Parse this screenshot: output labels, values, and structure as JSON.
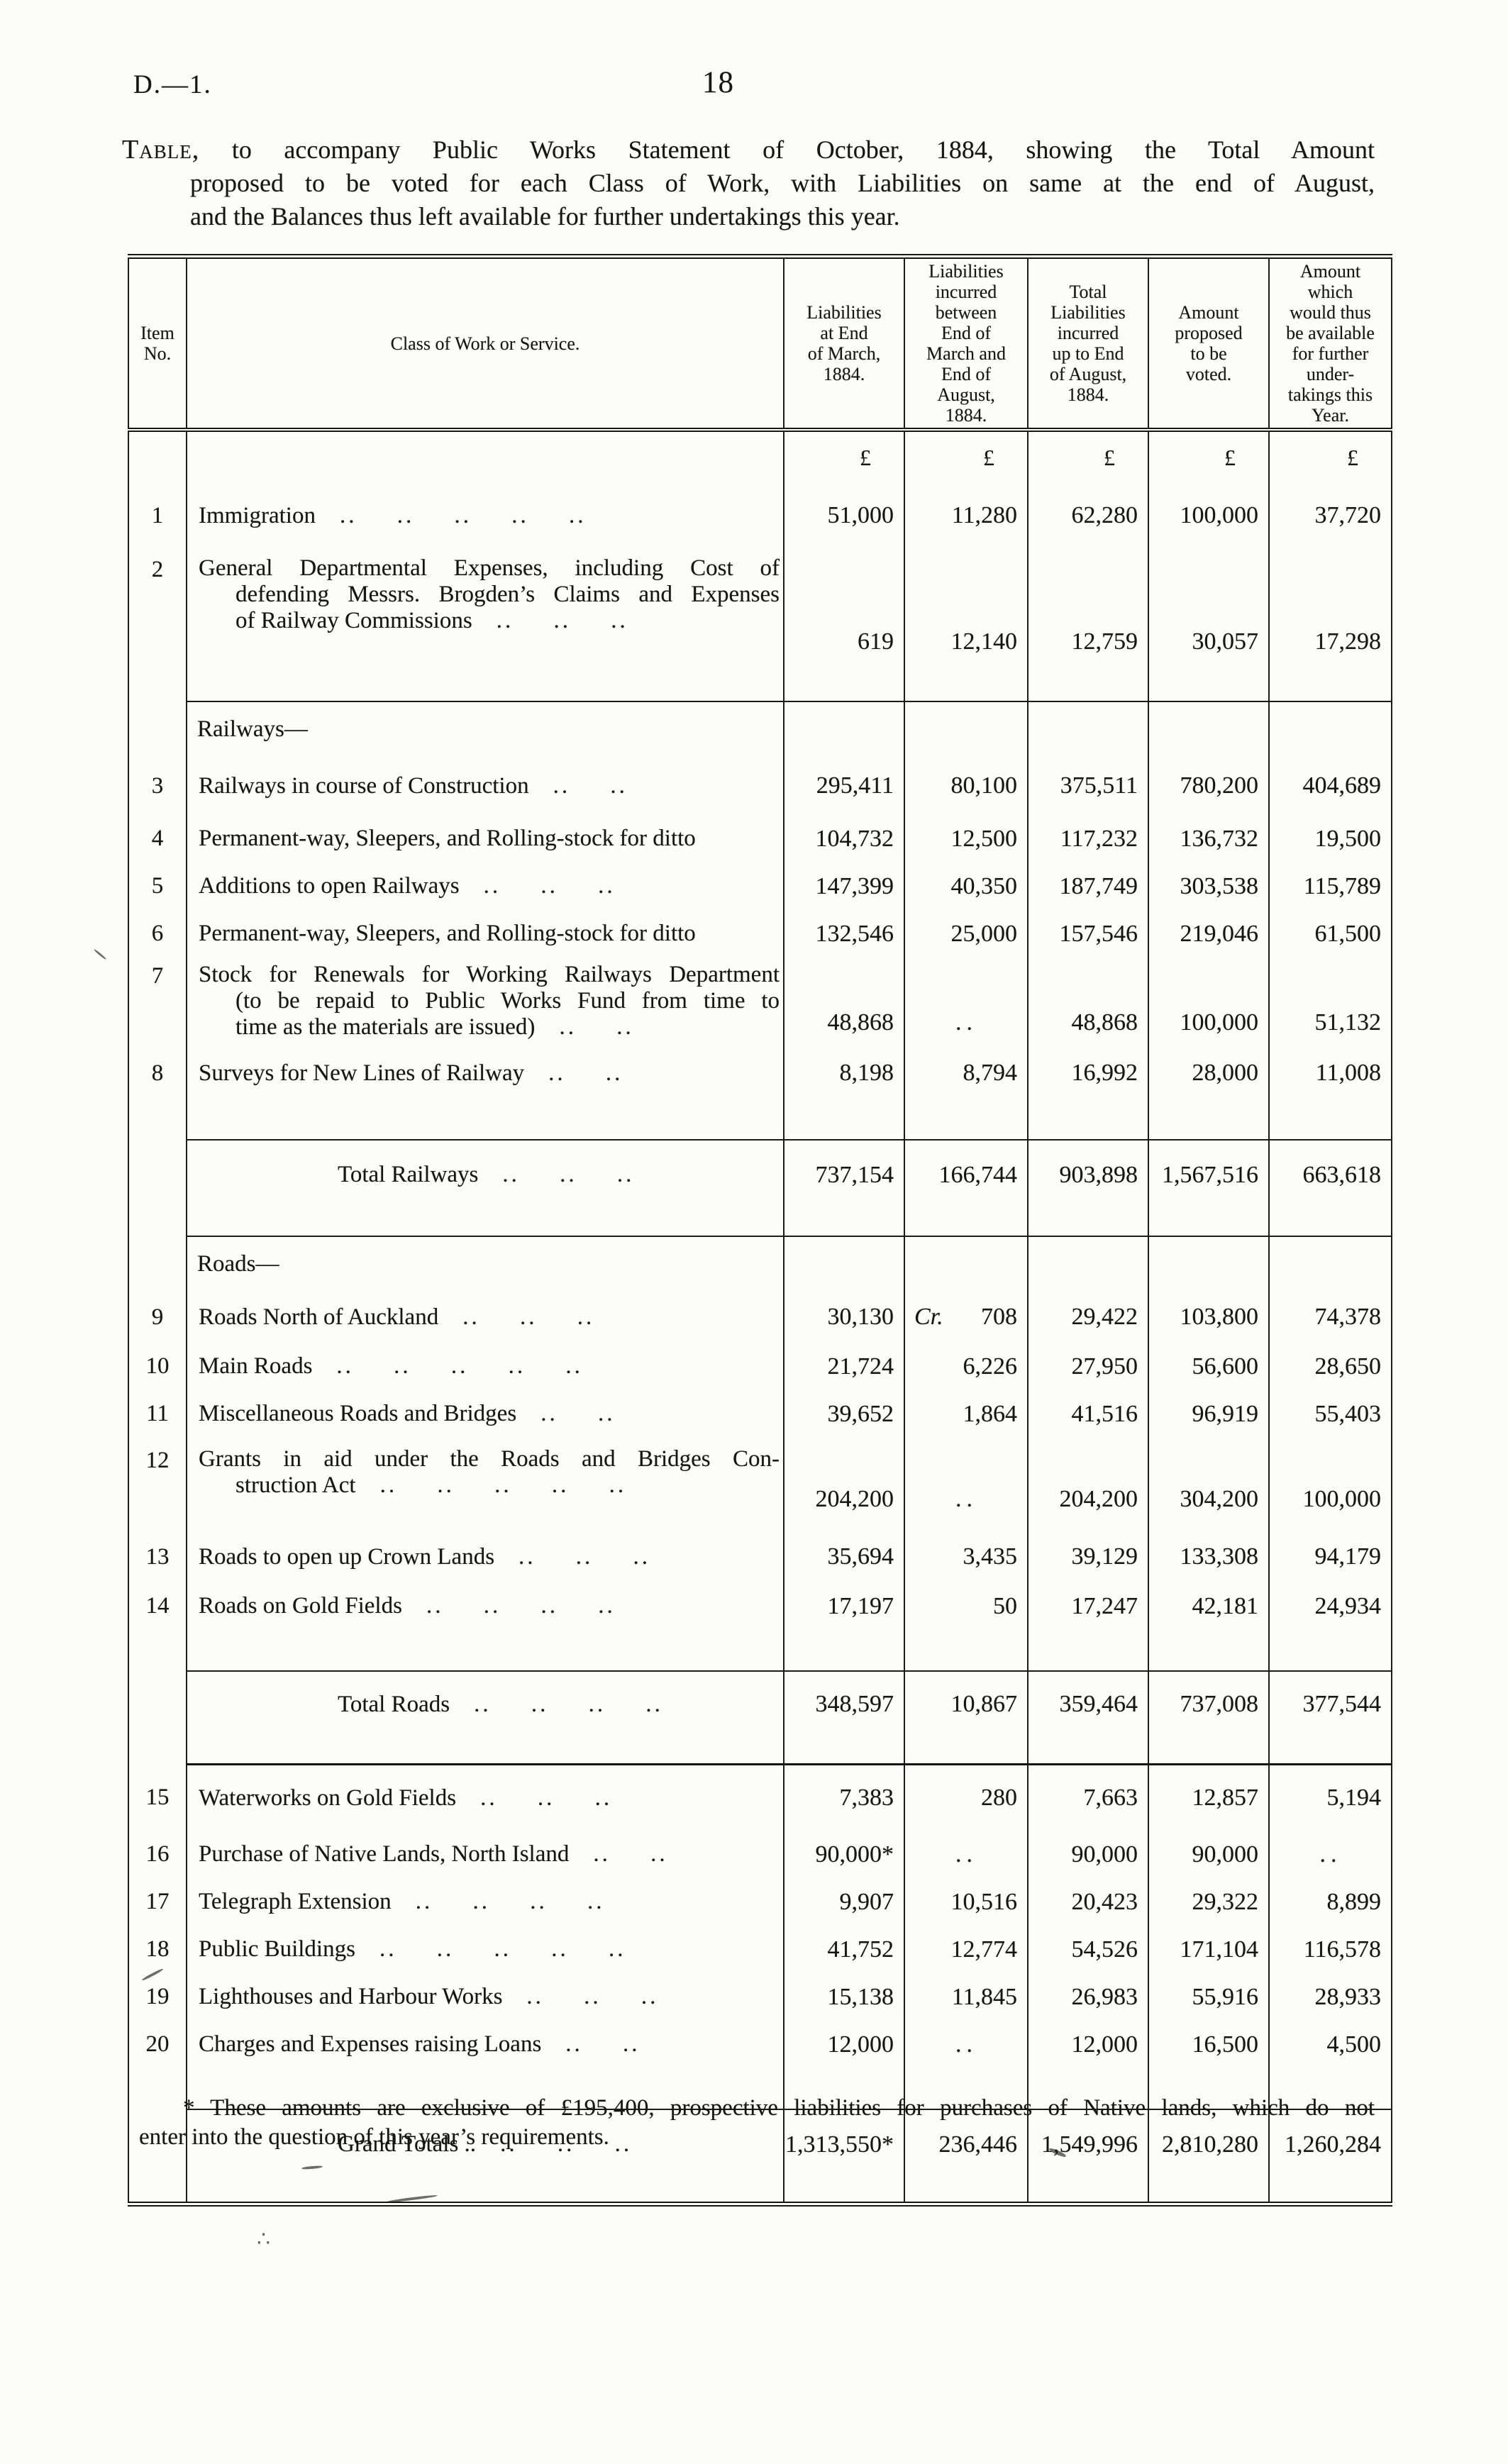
{
  "page": {
    "doc_ref": "D.—1.",
    "page_number": "18"
  },
  "title": {
    "lead": "Table,",
    "line1_rest": "to accompany Public Works Statement of October, 1884, showing the Total Amount",
    "line2": "proposed to be voted for each Class of Work, with Liabilities on same at the end of August,",
    "line3": "and the Balances thus left available for further undertakings this year."
  },
  "table": {
    "columns": [
      "Item\nNo.",
      "Class of Work or Service.",
      "Liabilities\nat End\nof March,\n1884.",
      "Liabilities\nincurred\nbetween\nEnd of\nMarch and\nEnd of\nAugust,\n1884.",
      "Total\nLiabilities\nincurred\nup to End\nof August,\n1884.",
      "Amount\nproposed\nto be\nvoted.",
      "Amount\nwhich\nwould thus\nbe available\nfor further\nunder-\ntakings this\nYear."
    ],
    "rows": [
      {
        "kind": "currency",
        "symbols": [
          "£",
          "£",
          "£",
          "£",
          "£"
        ]
      },
      {
        "kind": "item",
        "no": "1",
        "lines": [
          "Immigration"
        ],
        "dots": ".. .. .. .. ..",
        "values": [
          "51,000",
          "11,280",
          "62,280",
          "100,000",
          "37,720"
        ]
      },
      {
        "kind": "item",
        "no": "2",
        "lines": [
          "General Departmental Expenses, including Cost of",
          "defending Messrs. Brogden’s Claims and Expenses",
          "of Railway Commissions"
        ],
        "dots": ".. .. ..",
        "values": [
          "619",
          "12,140",
          "12,759",
          "30,057",
          "17,298"
        ]
      },
      {
        "kind": "section",
        "label": "Railways—"
      },
      {
        "kind": "item",
        "no": "3",
        "lines": [
          "Railways in course of Construction"
        ],
        "dots": ".. ..",
        "values": [
          "295,411",
          "80,100",
          "375,511",
          "780,200",
          "404,689"
        ]
      },
      {
        "kind": "item",
        "no": "4",
        "lines": [
          "Permanent-way, Sleepers, and Rolling-stock for ditto"
        ],
        "dots": "",
        "values": [
          "104,732",
          "12,500",
          "117,232",
          "136,732",
          "19,500"
        ]
      },
      {
        "kind": "item",
        "no": "5",
        "lines": [
          "Additions to open Railways"
        ],
        "dots": ".. .. ..",
        "values": [
          "147,399",
          "40,350",
          "187,749",
          "303,538",
          "115,789"
        ]
      },
      {
        "kind": "item",
        "no": "6",
        "lines": [
          "Permanent-way, Sleepers, and Rolling-stock for ditto"
        ],
        "dots": "",
        "values": [
          "132,546",
          "25,000",
          "157,546",
          "219,046",
          "61,500"
        ]
      },
      {
        "kind": "item",
        "no": "7",
        "lines": [
          "Stock for Renewals for Working Railways Department",
          "(to be repaid to Public Works Fund from time to",
          "time as the materials are issued)"
        ],
        "dots": ".. ..",
        "values": [
          "48,868",
          "..",
          "48,868",
          "100,000",
          "51,132"
        ]
      },
      {
        "kind": "item",
        "no": "8",
        "lines": [
          "Surveys for New Lines of Railway"
        ],
        "dots": ".. ..",
        "values": [
          "8,198",
          "8,794",
          "16,992",
          "28,000",
          "11,008"
        ]
      },
      {
        "kind": "total",
        "lines": [
          "Total Railways"
        ],
        "dots": ".. .. ..",
        "values": [
          "737,154",
          "166,744",
          "903,898",
          "1,567,516",
          "663,618"
        ]
      },
      {
        "kind": "section",
        "label": "Roads—"
      },
      {
        "kind": "item",
        "no": "9",
        "lines": [
          "Roads North of Auckland"
        ],
        "dots": ".. .. ..",
        "values": [
          "30,130",
          "Cr. 708",
          "29,422",
          "103,800",
          "74,378"
        ]
      },
      {
        "kind": "item",
        "no": "10",
        "lines": [
          "Main Roads"
        ],
        "dots": ".. .. .. .. ..",
        "values": [
          "21,724",
          "6,226",
          "27,950",
          "56,600",
          "28,650"
        ]
      },
      {
        "kind": "item",
        "no": "11",
        "lines": [
          "Miscellaneous Roads and Bridges"
        ],
        "dots": ".. ..",
        "values": [
          "39,652",
          "1,864",
          "41,516",
          "96,919",
          "55,403"
        ]
      },
      {
        "kind": "item",
        "no": "12",
        "lines": [
          "Grants in aid under the Roads and Bridges Con-",
          "struction Act"
        ],
        "dots": ".. .. .. .. ..",
        "values": [
          "204,200",
          "..",
          "204,200",
          "304,200",
          "100,000"
        ]
      },
      {
        "kind": "item",
        "no": "13",
        "lines": [
          "Roads to open up Crown Lands"
        ],
        "dots": ".. .. ..",
        "values": [
          "35,694",
          "3,435",
          "39,129",
          "133,308",
          "94,179"
        ]
      },
      {
        "kind": "item",
        "no": "14",
        "lines": [
          "Roads on Gold Fields"
        ],
        "dots": ".. .. .. ..",
        "values": [
          "17,197",
          "50",
          "17,247",
          "42,181",
          "24,934"
        ]
      },
      {
        "kind": "total",
        "lines": [
          "Total Roads"
        ],
        "dots": ".. .. .. ..",
        "values": [
          "348,597",
          "10,867",
          "359,464",
          "737,008",
          "377,544"
        ]
      },
      {
        "kind": "item",
        "no": "15",
        "lines": [
          "Waterworks on Gold Fields"
        ],
        "dots": ".. .. ..",
        "values": [
          "7,383",
          "280",
          "7,663",
          "12,857",
          "5,194"
        ]
      },
      {
        "kind": "item",
        "no": "16",
        "lines": [
          "Purchase of Native Lands, North Island"
        ],
        "dots": ".. ..",
        "values": [
          "90,000*",
          "..",
          "90,000",
          "90,000",
          ".."
        ]
      },
      {
        "kind": "item",
        "no": "17",
        "lines": [
          "Telegraph Extension"
        ],
        "dots": ".. .. .. ..",
        "values": [
          "9,907",
          "10,516",
          "20,423",
          "29,322",
          "8,899"
        ]
      },
      {
        "kind": "item",
        "no": "18",
        "lines": [
          "Public Buildings"
        ],
        "dots": ".. .. .. .. ..",
        "values": [
          "41,752",
          "12,774",
          "54,526",
          "171,104",
          "116,578"
        ]
      },
      {
        "kind": "item",
        "no": "19",
        "lines": [
          "Lighthouses and Harbour Works"
        ],
        "dots": ".. .. ..",
        "values": [
          "15,138",
          "11,845",
          "26,983",
          "55,916",
          "28,933"
        ]
      },
      {
        "kind": "item",
        "no": "20",
        "lines": [
          "Charges and Expenses raising Loans"
        ],
        "dots": ".. ..",
        "values": [
          "12,000",
          "..",
          "12,000",
          "16,500",
          "4,500"
        ]
      },
      {
        "kind": "total",
        "lines": [
          "Grand Totals .."
        ],
        "dots": ".. .. ..",
        "values": [
          "1,313,550*",
          "236,446",
          "1,549,996",
          "2,810,280",
          "1,260,284"
        ]
      }
    ]
  },
  "footnote": {
    "line1": "* These amounts are exclusive of £195,400, prospective liabilities for purchases of Native lands, which do not",
    "line2": "enter into the question of this year’s requirements."
  }
}
